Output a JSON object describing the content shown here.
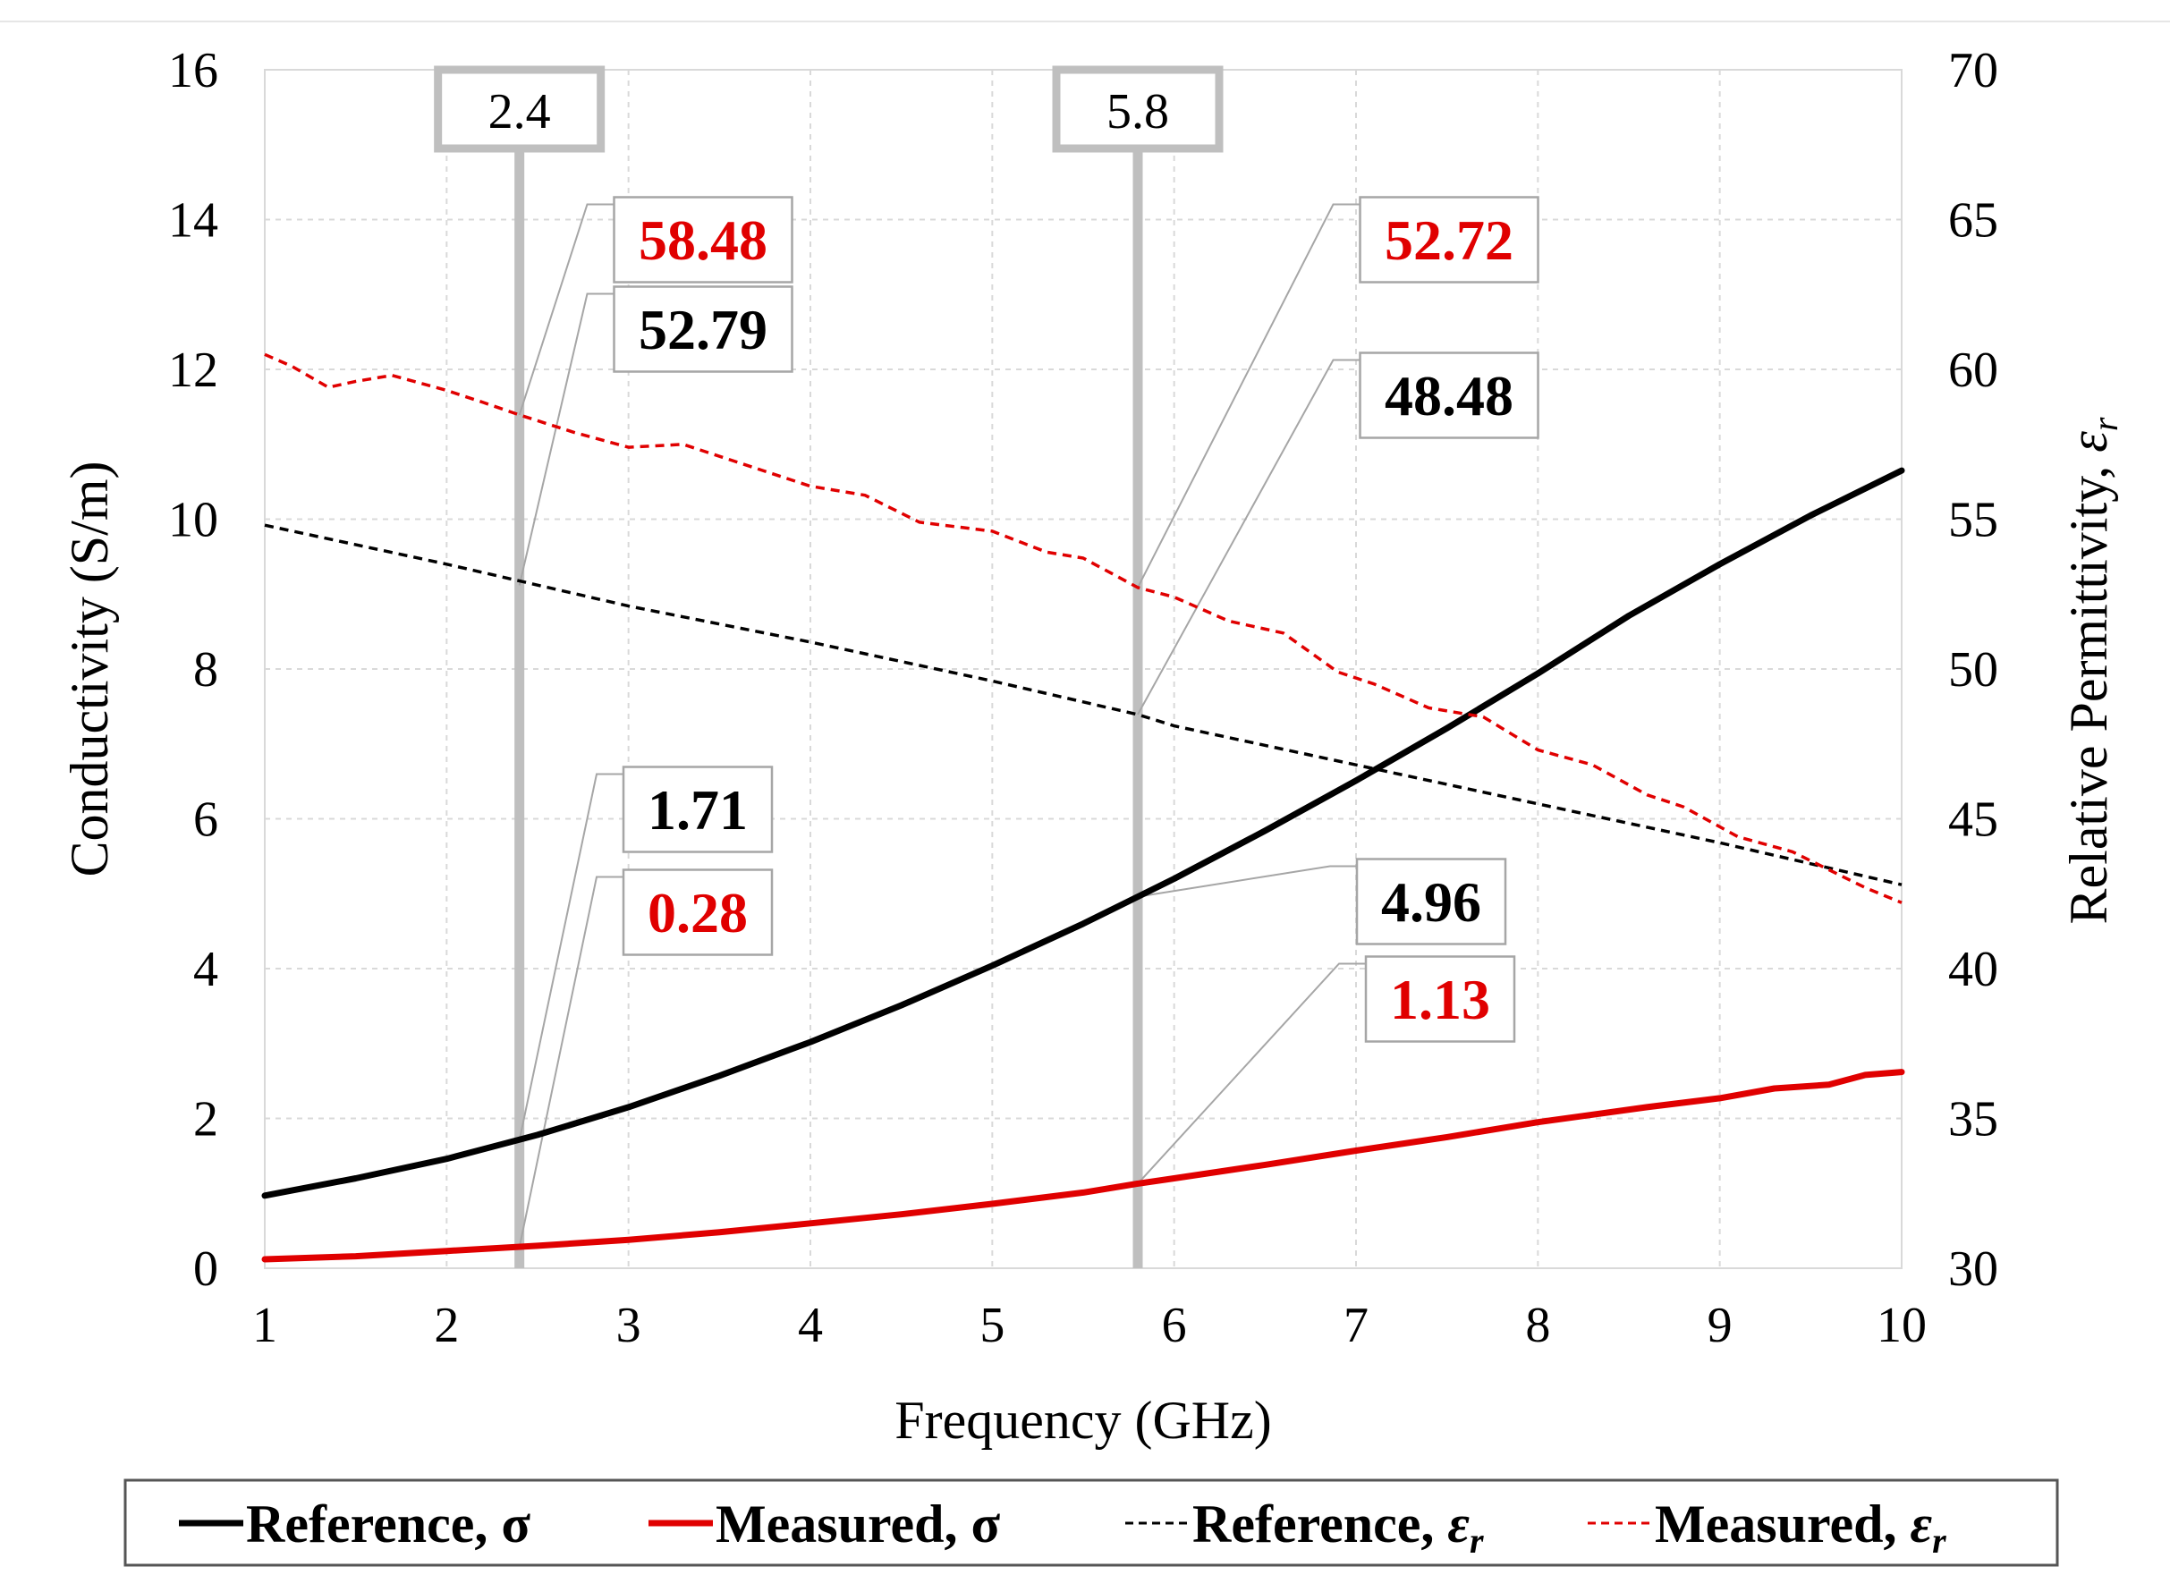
{
  "chart_data": {
    "type": "line",
    "xlabel": "Frequency (GHz)",
    "ylabel_left": "Conductivity (S/m)",
    "ylabel_right": "Relative Permittivity, ",
    "ylabel_right_symbol": "ε",
    "ylabel_right_sub": "r",
    "xlim": [
      1,
      10
    ],
    "ylim_left": [
      0,
      16
    ],
    "ylim_right": [
      30,
      70
    ],
    "x_ticks": [
      "1",
      "2",
      "3",
      "4",
      "5",
      "6",
      "7",
      "8",
      "9",
      "10"
    ],
    "y_left_ticks": [
      "0",
      "2",
      "4",
      "6",
      "8",
      "10",
      "12",
      "14",
      "16"
    ],
    "y_right_ticks": [
      "30",
      "35",
      "40",
      "45",
      "50",
      "55",
      "60",
      "65",
      "70"
    ],
    "grid": true,
    "legend_position": "bottom",
    "colors": {
      "reference": "#000000",
      "measured": "#e00000",
      "marker": "#bfbfbf",
      "grid": "#d9d9d9"
    },
    "markers": [
      {
        "x": 2.4,
        "label": "2.4"
      },
      {
        "x": 5.8,
        "label": "5.8"
      }
    ],
    "series": [
      {
        "name": "Reference, σ",
        "legend_label": "Reference, σ",
        "axis": "left",
        "style": "solid",
        "color": "reference",
        "x": [
          1,
          1.5,
          2,
          2.5,
          3,
          3.5,
          4,
          4.5,
          5,
          5.5,
          6,
          6.5,
          7,
          7.5,
          8,
          8.5,
          9,
          9.5,
          10
        ],
        "values": [
          0.97,
          1.2,
          1.46,
          1.78,
          2.15,
          2.57,
          3.02,
          3.51,
          4.04,
          4.6,
          5.2,
          5.84,
          6.51,
          7.21,
          7.94,
          8.71,
          9.4,
          10.05,
          10.65
        ]
      },
      {
        "name": "Measured, σ",
        "legend_label": "Measured, σ",
        "axis": "left",
        "style": "solid",
        "color": "measured",
        "x": [
          1,
          1.5,
          2,
          2.5,
          3,
          3.5,
          4,
          4.5,
          5,
          5.5,
          5.8,
          6,
          6.5,
          7,
          7.5,
          8,
          8.3,
          8.6,
          9,
          9.3,
          9.6,
          9.8,
          10
        ],
        "values": [
          0.12,
          0.16,
          0.23,
          0.3,
          0.38,
          0.48,
          0.6,
          0.72,
          0.86,
          1.01,
          1.13,
          1.2,
          1.38,
          1.57,
          1.75,
          1.95,
          2.05,
          2.15,
          2.27,
          2.4,
          2.45,
          2.58,
          2.62
        ]
      },
      {
        "name": "Reference, εr",
        "legend_label": "Reference, ",
        "legend_symbol": "ε",
        "legend_sub": "r",
        "axis": "right",
        "style": "dashed",
        "color": "reference",
        "x": [
          1,
          2,
          3,
          4,
          5,
          5.8,
          6,
          7,
          8,
          9,
          10
        ],
        "values": [
          54.8,
          53.5,
          52.1,
          50.9,
          49.6,
          48.48,
          48.1,
          46.8,
          45.5,
          44.2,
          42.8
        ]
      },
      {
        "name": "Measured, εr",
        "legend_label": "Measured, ",
        "legend_symbol": "ε",
        "legend_sub": "r",
        "axis": "right",
        "style": "dashed",
        "color": "measured",
        "x": [
          1,
          1.15,
          1.35,
          1.5,
          1.7,
          2,
          2.2,
          2.4,
          2.7,
          3,
          3.3,
          3.6,
          4,
          4.3,
          4.6,
          5,
          5.3,
          5.5,
          5.8,
          6,
          6.3,
          6.6,
          6.9,
          7.1,
          7.4,
          7.7,
          8,
          8.3,
          8.6,
          8.8,
          9.1,
          9.4,
          9.6,
          9.8,
          10
        ],
        "values": [
          60.5,
          60.1,
          59.4,
          59.6,
          59.8,
          59.3,
          58.9,
          58.48,
          57.9,
          57.4,
          57.5,
          56.9,
          56.1,
          55.8,
          54.9,
          54.6,
          53.9,
          53.7,
          52.72,
          52.4,
          51.6,
          51.2,
          49.9,
          49.5,
          48.7,
          48.4,
          47.3,
          46.8,
          45.8,
          45.4,
          44.4,
          43.9,
          43.3,
          42.7,
          42.2
        ]
      }
    ],
    "callouts": [
      {
        "text": "58.48",
        "color": "measured",
        "x": 2.4,
        "axis": "right",
        "y": 58.48
      },
      {
        "text": "52.79",
        "color": "reference",
        "x": 2.4,
        "axis": "right",
        "y": 52.79
      },
      {
        "text": "1.71",
        "color": "reference",
        "x": 2.4,
        "axis": "left",
        "y": 1.71
      },
      {
        "text": "0.28",
        "color": "measured",
        "x": 2.4,
        "axis": "left",
        "y": 0.28
      },
      {
        "text": "52.72",
        "color": "measured",
        "x": 5.8,
        "axis": "right",
        "y": 52.72
      },
      {
        "text": "48.48",
        "color": "reference",
        "x": 5.8,
        "axis": "right",
        "y": 48.48
      },
      {
        "text": "4.96",
        "color": "reference",
        "x": 5.8,
        "axis": "left",
        "y": 4.96
      },
      {
        "text": "1.13",
        "color": "measured",
        "x": 5.8,
        "axis": "left",
        "y": 1.13
      }
    ]
  }
}
